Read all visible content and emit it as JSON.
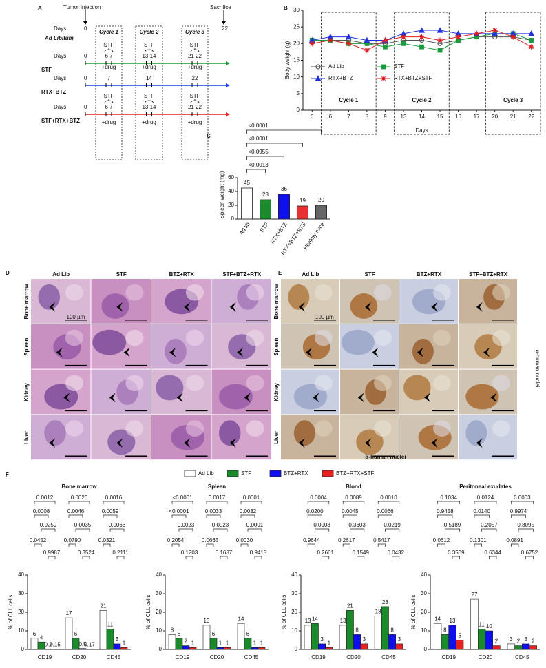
{
  "panel_a": {
    "label": "A",
    "tumor_injection": "Tumor injection",
    "sacrifice": "Sacrifice",
    "cycles": [
      "Cycle 1",
      "Cycle 2",
      "Cycle 3"
    ],
    "rows": [
      {
        "name": "Ad Libitum",
        "days_label": "Days",
        "days": [
          "0",
          "22"
        ]
      },
      {
        "name": "STF",
        "color": "#1a9a3a",
        "days_label": "Days",
        "start": "0",
        "above": [
          "STF",
          "STF",
          "STF"
        ],
        "days": [
          "6 7",
          "13 14",
          "21 22"
        ]
      },
      {
        "name": "RTX+BTZ",
        "color": "#1f3fe0",
        "days_label": "Days",
        "start": "0",
        "above": [
          "+drug",
          "+drug",
          "+drug"
        ],
        "days": [
          "7",
          "14",
          "22"
        ]
      },
      {
        "name": "STF+RTX+BTZ",
        "color": "#e02020",
        "days_label": "Days",
        "start": "0",
        "above": [
          "STF",
          "STF",
          "STF"
        ],
        "days": [
          "6 7",
          "13 14",
          "21 22"
        ],
        "below": [
          "+drug",
          "+drug",
          "+drug"
        ]
      }
    ]
  },
  "chart_data": [
    {
      "type": "line",
      "panel_label": "B",
      "x_label": "Days",
      "y_label": "Body weight (g)",
      "categories": [
        "0",
        "6",
        "7",
        "8",
        "9",
        "13",
        "14",
        "15",
        "16",
        "17",
        "20",
        "21",
        "22"
      ],
      "ylim": [
        0,
        30
      ],
      "yticks": [
        0,
        5,
        10,
        15,
        20,
        25,
        30
      ],
      "annotations": [
        "Cycle 1",
        "Cycle 2",
        "Cycle 3"
      ],
      "series": [
        {
          "name": "Ad Lib",
          "color": "#555555",
          "marker": "circle",
          "values": [
            21,
            21,
            21,
            20,
            20,
            21,
            21,
            20,
            21,
            22,
            22,
            22,
            21
          ]
        },
        {
          "name": "STF",
          "color": "#1a9a3a",
          "marker": "square",
          "values": [
            21,
            21,
            20,
            20,
            19,
            20,
            19,
            18,
            21,
            22,
            23,
            23,
            21
          ]
        },
        {
          "name": "RTX+BTZ",
          "color": "#2233dd",
          "marker": "triangle",
          "values": [
            21,
            22,
            22,
            21,
            21,
            23,
            24,
            24,
            23,
            23,
            23,
            23,
            23
          ]
        },
        {
          "name": "RTX+BTZ+STF",
          "color": "#e02020",
          "marker": "star",
          "values": [
            20,
            21,
            20,
            18,
            21,
            22,
            22,
            21,
            22,
            23,
            24,
            22,
            19
          ]
        }
      ]
    },
    {
      "type": "bar",
      "panel_label": "C",
      "y_label": "Spleen weight (mg)",
      "categories": [
        "Ad lib",
        "STF",
        "RTX+BTZ",
        "RTX+BTZ+STS",
        "Healthy mice"
      ],
      "values": [
        45,
        28,
        36,
        19,
        20
      ],
      "colors": [
        "#ffffff",
        "#1a8a2a",
        "#1010ee",
        "#e83030",
        "#666666"
      ],
      "ylim": [
        0,
        60
      ],
      "yticks": [
        0,
        20,
        40,
        60
      ],
      "comparisons": [
        "<0.0013",
        "<0.0955",
        "<0.0001",
        "<0.0001"
      ]
    },
    {
      "type": "grouped_bar",
      "title": "Bone marrow",
      "y_label": "% of CLL cells",
      "categories": [
        "CD19",
        "CD20",
        "CD45"
      ],
      "ylim": [
        0,
        40
      ],
      "yticks": [
        0,
        10,
        20,
        30,
        40
      ],
      "series": [
        {
          "values": [
            6,
            17,
            21
          ]
        },
        {
          "values": [
            4,
            6,
            11
          ]
        },
        {
          "values": [
            0.2,
            0.5,
            3
          ]
        },
        {
          "values": [
            0.15,
            0.17,
            1
          ]
        }
      ],
      "pvalues": [
        [
          "0.0012",
          "0.0008",
          "0.0259",
          "0.0452",
          "0.9987"
        ],
        [
          "0.0026",
          "0.0046",
          "0.0035",
          "0.0790",
          "0.3524"
        ],
        [
          "0.0016",
          "0.0059",
          "0.0063",
          "0.0321",
          "0.2111"
        ]
      ]
    },
    {
      "type": "grouped_bar",
      "title": "Spleen",
      "y_label": "% of CLL cells",
      "categories": [
        "CD19",
        "CD20",
        "CD45"
      ],
      "ylim": [
        0,
        40
      ],
      "yticks": [
        0,
        10,
        20,
        30,
        40
      ],
      "series": [
        {
          "values": [
            8,
            13,
            14
          ]
        },
        {
          "values": [
            6,
            6,
            6
          ]
        },
        {
          "values": [
            2,
            1,
            1
          ]
        },
        {
          "values": [
            1,
            1,
            1
          ]
        }
      ],
      "pvalues": [
        [
          "<0.0001",
          "<0.0001",
          "0.0023",
          "0.2054",
          "0.1203"
        ],
        [
          "0.0017",
          "0.0033",
          "0.0023",
          "0.0665",
          "0.1687"
        ],
        [
          "0.0001",
          "0.0032",
          "0.0001",
          "0.0030",
          "0.9415"
        ]
      ]
    },
    {
      "type": "grouped_bar",
      "title": "Blood",
      "y_label": "% of CLL cells",
      "categories": [
        "CD19",
        "CD20",
        "CD45"
      ],
      "ylim": [
        0,
        40
      ],
      "yticks": [
        0,
        10,
        20,
        30,
        40
      ],
      "series": [
        {
          "values": [
            13,
            13,
            18
          ]
        },
        {
          "values": [
            14,
            21,
            23
          ]
        },
        {
          "values": [
            3,
            8,
            8
          ]
        },
        {
          "values": [
            1,
            3,
            3
          ]
        }
      ],
      "pvalues": [
        [
          "0.0004",
          "0.0200",
          "0.0008",
          "0.9644",
          "0.2661"
        ],
        [
          "0.0089",
          "0.0045",
          "0.3603",
          "0.2617",
          "0.1549"
        ],
        [
          "0.0010",
          "0.0066",
          "0.0219",
          "0.5417",
          "0.0432"
        ]
      ]
    },
    {
      "type": "grouped_bar",
      "title": "Peritoneal exudates",
      "y_label": "% of CLL cells",
      "categories": [
        "CD19",
        "CD20",
        "CD45"
      ],
      "ylim": [
        0,
        40
      ],
      "yticks": [
        0,
        10,
        20,
        30,
        40
      ],
      "series": [
        {
          "values": [
            14,
            27,
            3
          ]
        },
        {
          "values": [
            8,
            11,
            2
          ]
        },
        {
          "values": [
            13,
            10,
            3
          ]
        },
        {
          "values": [
            5,
            2,
            2
          ]
        }
      ],
      "pvalues": [
        [
          "0.1034",
          "0.9458",
          "0.5189",
          "0.0612",
          "0.3509"
        ],
        [
          "0.0124",
          "0.0140",
          "0.2057",
          "0.1301",
          "0.6344"
        ],
        [
          "0.6003",
          "0.9974",
          "0.8095",
          "0.0891",
          "0.6752"
        ]
      ]
    }
  ],
  "panel_d": {
    "label": "D",
    "columns": [
      "Ad Lib",
      "STF",
      "BTZ+RTX",
      "STF+BTZ+RTX"
    ],
    "rows": [
      "Bone marrow",
      "Spleen",
      "Kidney",
      "Liver"
    ],
    "scale": "100 µm"
  },
  "panel_e": {
    "label": "E",
    "columns": [
      "Ad Lib",
      "STF",
      "BTZ+RTX",
      "STF+BTZ+RTX"
    ],
    "rows": [
      "Bone marrow",
      "Spleen",
      "Kidney",
      "Liver"
    ],
    "scale": "100 µm",
    "stain": "α-human nuclei"
  },
  "panel_f": {
    "label": "F",
    "legend": [
      {
        "name": "Ad Lib",
        "color": "#ffffff"
      },
      {
        "name": "STF",
        "color": "#1a8a2a"
      },
      {
        "name": "BTZ+RTX",
        "color": "#1010ee"
      },
      {
        "name": "BTZ+RTX+STF",
        "color": "#e82020"
      }
    ]
  }
}
